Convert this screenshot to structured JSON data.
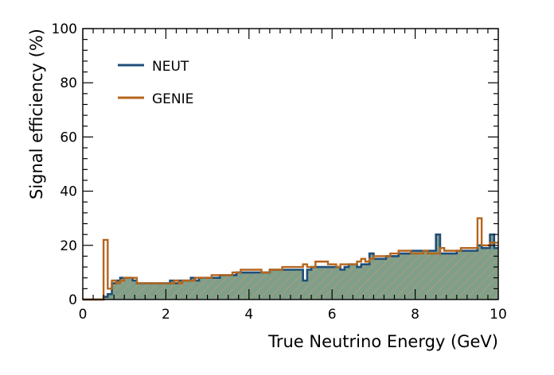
{
  "chart_data": {
    "type": "step",
    "xlabel": "True Neutrino Energy (GeV)",
    "ylabel": "Signal efficiency (%)",
    "xlim": [
      0,
      10
    ],
    "ylim": [
      0,
      100
    ],
    "x_ticks": [
      "0",
      "2",
      "4",
      "6",
      "8",
      "10"
    ],
    "y_ticks": [
      "0",
      "20",
      "40",
      "60",
      "80",
      "100"
    ],
    "grid": false,
    "legend_position": "top-left",
    "bin_width": 0.1,
    "bin_start": 0,
    "series": [
      {
        "name": "NEUT",
        "color": "#1f4e79",
        "fill": "#7f9f8a",
        "values": [
          0,
          0,
          0,
          0,
          0,
          1,
          2,
          6,
          7,
          8,
          8,
          8,
          7,
          6,
          6,
          6,
          6,
          6,
          6,
          6,
          6,
          7,
          6,
          7,
          7,
          7,
          8,
          7,
          8,
          8,
          8,
          8,
          8,
          9,
          9,
          9,
          9,
          10,
          10,
          10,
          10,
          10,
          10,
          10,
          10,
          11,
          11,
          11,
          11,
          11,
          11,
          11,
          11,
          7,
          11,
          12,
          12,
          12,
          12,
          12,
          12,
          12,
          11,
          12,
          13,
          13,
          12,
          13,
          13,
          17,
          15,
          15,
          15,
          16,
          16,
          16,
          17,
          17,
          17,
          18,
          18,
          18,
          18,
          18,
          18,
          24,
          17,
          17,
          17,
          17,
          18,
          18,
          18,
          18,
          18,
          20,
          19,
          19,
          24,
          19
        ]
      },
      {
        "name": "GENIE",
        "color": "#b5651d",
        "fill": "none",
        "values": [
          0,
          0,
          0,
          0,
          0,
          22,
          4,
          7,
          6,
          7,
          8,
          8,
          8,
          6,
          6,
          6,
          6,
          6,
          6,
          6,
          6,
          6,
          7,
          6,
          7,
          7,
          7,
          8,
          8,
          8,
          8,
          9,
          9,
          9,
          9,
          9,
          10,
          10,
          11,
          11,
          11,
          11,
          11,
          10,
          10,
          11,
          11,
          11,
          12,
          12,
          12,
          12,
          12,
          13,
          12,
          12,
          14,
          14,
          14,
          13,
          13,
          12,
          13,
          13,
          13,
          13,
          14,
          15,
          14,
          15,
          16,
          16,
          16,
          16,
          17,
          17,
          18,
          18,
          18,
          17,
          17,
          17,
          18,
          17,
          17,
          17,
          19,
          18,
          18,
          18,
          18,
          19,
          19,
          19,
          19,
          30,
          20,
          20,
          21,
          21
        ]
      }
    ]
  }
}
